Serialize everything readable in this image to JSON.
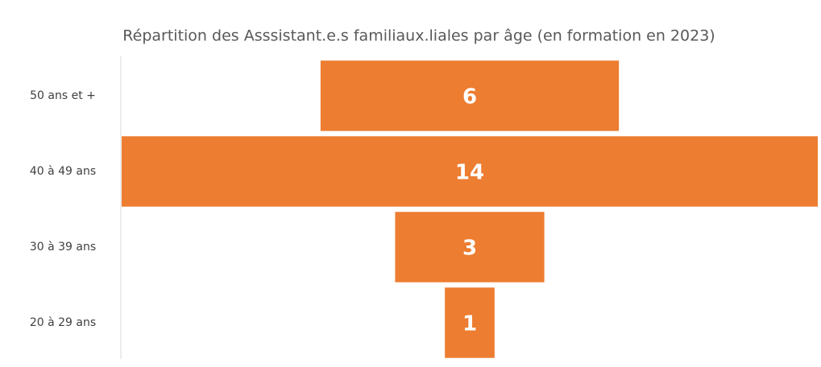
{
  "chart_data": {
    "type": "funnel",
    "title": "Répartition des Asssistant.e.s familiaux.liales par âge (en formation en 2023)",
    "categories": [
      "50 ans et +",
      "40 à 49 ans",
      "30 à 39 ans",
      "20 à 29 ans"
    ],
    "values": [
      6,
      14,
      3,
      1
    ],
    "color": "#ed7d31"
  }
}
